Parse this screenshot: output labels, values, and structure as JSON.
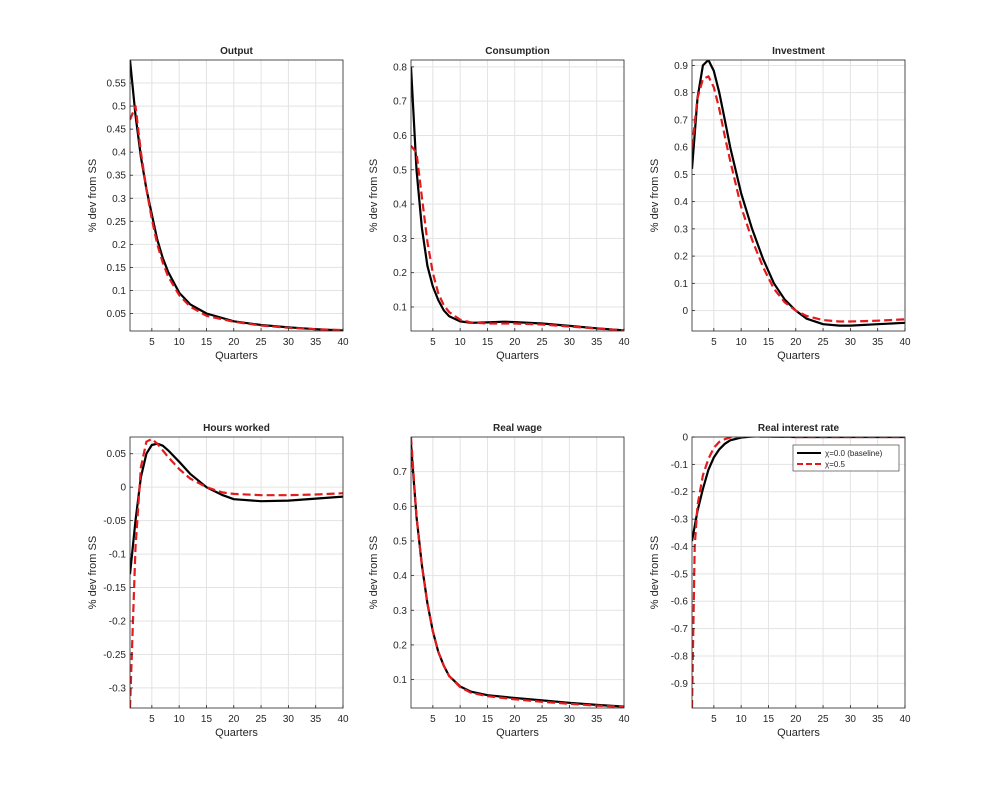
{
  "colors": {
    "baseline": "#000000",
    "alt": "#e41a1c",
    "grid": "#e3e3e3",
    "axis": "#262626"
  },
  "chart_data": [
    {
      "type": "line",
      "title": "Output",
      "xlabel": "Quarters",
      "ylabel": "% dev from SS",
      "xlim": [
        1,
        40
      ],
      "ylim": [
        0.012,
        0.6
      ],
      "grid": true,
      "xticks": [
        5,
        10,
        15,
        20,
        25,
        30,
        35,
        40
      ],
      "yticks": [
        0.05,
        0.1,
        0.15,
        0.2,
        0.25,
        0.3,
        0.35,
        0.4,
        0.45,
        0.5,
        0.55
      ],
      "series": [
        {
          "name": "χ=0.0 (baseline)",
          "style": "solid",
          "x": [
            1,
            2,
            3,
            4,
            5,
            6,
            7,
            8,
            10,
            12,
            15,
            20,
            25,
            30,
            35,
            40
          ],
          "y": [
            0.6,
            0.48,
            0.39,
            0.32,
            0.265,
            0.21,
            0.17,
            0.14,
            0.095,
            0.07,
            0.05,
            0.033,
            0.025,
            0.02,
            0.016,
            0.013
          ]
        },
        {
          "name": "χ=0.5",
          "style": "dashed",
          "x": [
            1,
            2,
            3,
            4,
            5,
            6,
            7,
            8,
            10,
            12,
            15,
            20,
            25,
            30,
            35,
            40
          ],
          "y": [
            0.47,
            0.5,
            0.4,
            0.32,
            0.255,
            0.2,
            0.16,
            0.13,
            0.09,
            0.065,
            0.045,
            0.032,
            0.024,
            0.019,
            0.016,
            0.014
          ]
        }
      ]
    },
    {
      "type": "line",
      "title": "Consumption",
      "xlabel": "Quarters",
      "ylabel": "% dev from SS",
      "xlim": [
        1,
        40
      ],
      "ylim": [
        0.03,
        0.82
      ],
      "grid": true,
      "xticks": [
        5,
        10,
        15,
        20,
        25,
        30,
        35,
        40
      ],
      "yticks": [
        0.1,
        0.2,
        0.3,
        0.4,
        0.5,
        0.6,
        0.7,
        0.8
      ],
      "series": [
        {
          "name": "χ=0.0 (baseline)",
          "style": "solid",
          "x": [
            1,
            2,
            3,
            4,
            5,
            6,
            7,
            8,
            10,
            12,
            15,
            18,
            20,
            25,
            30,
            35,
            40
          ],
          "y": [
            0.8,
            0.5,
            0.33,
            0.22,
            0.16,
            0.12,
            0.09,
            0.073,
            0.058,
            0.054,
            0.055,
            0.057,
            0.056,
            0.052,
            0.045,
            0.038,
            0.032
          ]
        },
        {
          "name": "χ=0.5",
          "style": "dashed",
          "x": [
            1,
            2,
            3,
            4,
            5,
            6,
            7,
            8,
            10,
            12,
            15,
            18,
            20,
            25,
            30,
            35,
            40
          ],
          "y": [
            0.57,
            0.55,
            0.42,
            0.29,
            0.2,
            0.14,
            0.105,
            0.085,
            0.063,
            0.055,
            0.052,
            0.052,
            0.052,
            0.049,
            0.043,
            0.037,
            0.032
          ]
        }
      ]
    },
    {
      "type": "line",
      "title": "Investment",
      "xlabel": "Quarters",
      "ylabel": "% dev from SS",
      "xlim": [
        1,
        40
      ],
      "ylim": [
        -0.075,
        0.92
      ],
      "grid": true,
      "xticks": [
        5,
        10,
        15,
        20,
        25,
        30,
        35,
        40
      ],
      "yticks": [
        0,
        0.1,
        0.2,
        0.3,
        0.4,
        0.5,
        0.6,
        0.7,
        0.8,
        0.9
      ],
      "series": [
        {
          "name": "χ=0.0 (baseline)",
          "style": "solid",
          "x": [
            1,
            2,
            3,
            4,
            5,
            6,
            7,
            8,
            10,
            12,
            14,
            16,
            18,
            20,
            22,
            25,
            28,
            30,
            35,
            40
          ],
          "y": [
            0.52,
            0.78,
            0.9,
            0.92,
            0.88,
            0.8,
            0.7,
            0.6,
            0.43,
            0.3,
            0.19,
            0.1,
            0.04,
            0.0,
            -0.03,
            -0.05,
            -0.055,
            -0.055,
            -0.05,
            -0.045
          ]
        },
        {
          "name": "χ=0.5",
          "style": "dashed",
          "x": [
            1,
            2,
            3,
            4,
            5,
            6,
            7,
            8,
            10,
            12,
            14,
            16,
            18,
            20,
            22,
            25,
            28,
            30,
            35,
            40
          ],
          "y": [
            0.6,
            0.78,
            0.85,
            0.86,
            0.82,
            0.74,
            0.64,
            0.55,
            0.38,
            0.26,
            0.16,
            0.08,
            0.03,
            0.0,
            -0.02,
            -0.035,
            -0.04,
            -0.04,
            -0.037,
            -0.032
          ]
        }
      ]
    },
    {
      "type": "line",
      "title": "Hours worked",
      "xlabel": "Quarters",
      "ylabel": "% dev from SS",
      "xlim": [
        1,
        40
      ],
      "ylim": [
        -0.33,
        0.075
      ],
      "grid": true,
      "xticks": [
        5,
        10,
        15,
        20,
        25,
        30,
        35,
        40
      ],
      "yticks": [
        -0.3,
        -0.25,
        -0.2,
        -0.15,
        -0.1,
        -0.05,
        0,
        0.05
      ],
      "series": [
        {
          "name": "χ=0.0 (baseline)",
          "style": "solid",
          "x": [
            1,
            2,
            3,
            4,
            5,
            6,
            7,
            8,
            10,
            12,
            15,
            18,
            20,
            25,
            30,
            35,
            40
          ],
          "y": [
            -0.13,
            -0.05,
            0.015,
            0.05,
            0.063,
            0.065,
            0.062,
            0.055,
            0.038,
            0.02,
            0.0,
            -0.012,
            -0.018,
            -0.021,
            -0.02,
            -0.017,
            -0.014
          ]
        },
        {
          "name": "χ=0.5",
          "style": "dashed",
          "x": [
            1,
            2,
            3,
            4,
            5,
            6,
            7,
            8,
            10,
            12,
            15,
            18,
            20,
            25,
            30,
            35,
            40
          ],
          "y": [
            -0.33,
            -0.09,
            0.03,
            0.068,
            0.072,
            0.065,
            0.055,
            0.045,
            0.027,
            0.013,
            0.0,
            -0.008,
            -0.01,
            -0.012,
            -0.012,
            -0.011,
            -0.009
          ]
        }
      ]
    },
    {
      "type": "line",
      "title": "Real wage",
      "xlabel": "Quarters",
      "ylabel": "% dev from SS",
      "xlim": [
        1,
        40
      ],
      "ylim": [
        0.018,
        0.8
      ],
      "grid": true,
      "xticks": [
        5,
        10,
        15,
        20,
        25,
        30,
        35,
        40
      ],
      "yticks": [
        0.1,
        0.2,
        0.3,
        0.4,
        0.5,
        0.6,
        0.7
      ],
      "series": [
        {
          "name": "χ=0.0 (baseline)",
          "style": "solid",
          "x": [
            1,
            2,
            3,
            4,
            5,
            6,
            7,
            8,
            10,
            12,
            15,
            20,
            25,
            30,
            35,
            40
          ],
          "y": [
            0.78,
            0.57,
            0.43,
            0.32,
            0.24,
            0.18,
            0.14,
            0.11,
            0.08,
            0.065,
            0.055,
            0.047,
            0.04,
            0.033,
            0.027,
            0.022
          ]
        },
        {
          "name": "χ=0.5",
          "style": "dashed",
          "x": [
            1,
            2,
            3,
            4,
            5,
            6,
            7,
            8,
            10,
            12,
            15,
            20,
            25,
            30,
            35,
            40
          ],
          "y": [
            0.8,
            0.57,
            0.43,
            0.32,
            0.24,
            0.18,
            0.14,
            0.11,
            0.078,
            0.062,
            0.052,
            0.043,
            0.036,
            0.03,
            0.025,
            0.021
          ]
        }
      ]
    },
    {
      "type": "line",
      "title": "Real interest rate",
      "xlabel": "Quarters",
      "ylabel": "% dev from SS",
      "xlim": [
        1,
        40
      ],
      "ylim": [
        -0.99,
        0.0
      ],
      "grid": true,
      "xticks": [
        5,
        10,
        15,
        20,
        25,
        30,
        35,
        40
      ],
      "yticks": [
        -0.9,
        -0.8,
        -0.7,
        -0.6,
        -0.5,
        -0.4,
        -0.3,
        -0.2,
        -0.1,
        0
      ],
      "legend": {
        "placement": "top-right",
        "entries": [
          "χ=0.0 (baseline)",
          "χ=0.5"
        ]
      },
      "series": [
        {
          "name": "χ=0.0 (baseline)",
          "style": "solid",
          "x": [
            1,
            2,
            3,
            4,
            5,
            6,
            7,
            8,
            10,
            12,
            13,
            15,
            20,
            25,
            30,
            35,
            40
          ],
          "y": [
            -0.38,
            -0.27,
            -0.19,
            -0.12,
            -0.075,
            -0.045,
            -0.025,
            -0.012,
            -0.002,
            0.002,
            0.003,
            0.002,
            0.0,
            0.0,
            0.0,
            0.0,
            0.0
          ]
        },
        {
          "name": "χ=0.5",
          "style": "dashed",
          "x": [
            1,
            1.5,
            2,
            3,
            4,
            5,
            6,
            7,
            8,
            10,
            12,
            15,
            20,
            25,
            30,
            35,
            40
          ],
          "y": [
            -0.99,
            -0.4,
            -0.25,
            -0.14,
            -0.08,
            -0.04,
            -0.018,
            -0.008,
            -0.002,
            0.001,
            0.002,
            0.001,
            0.0,
            0.0,
            0.0,
            0.0,
            0.0
          ]
        }
      ]
    }
  ]
}
